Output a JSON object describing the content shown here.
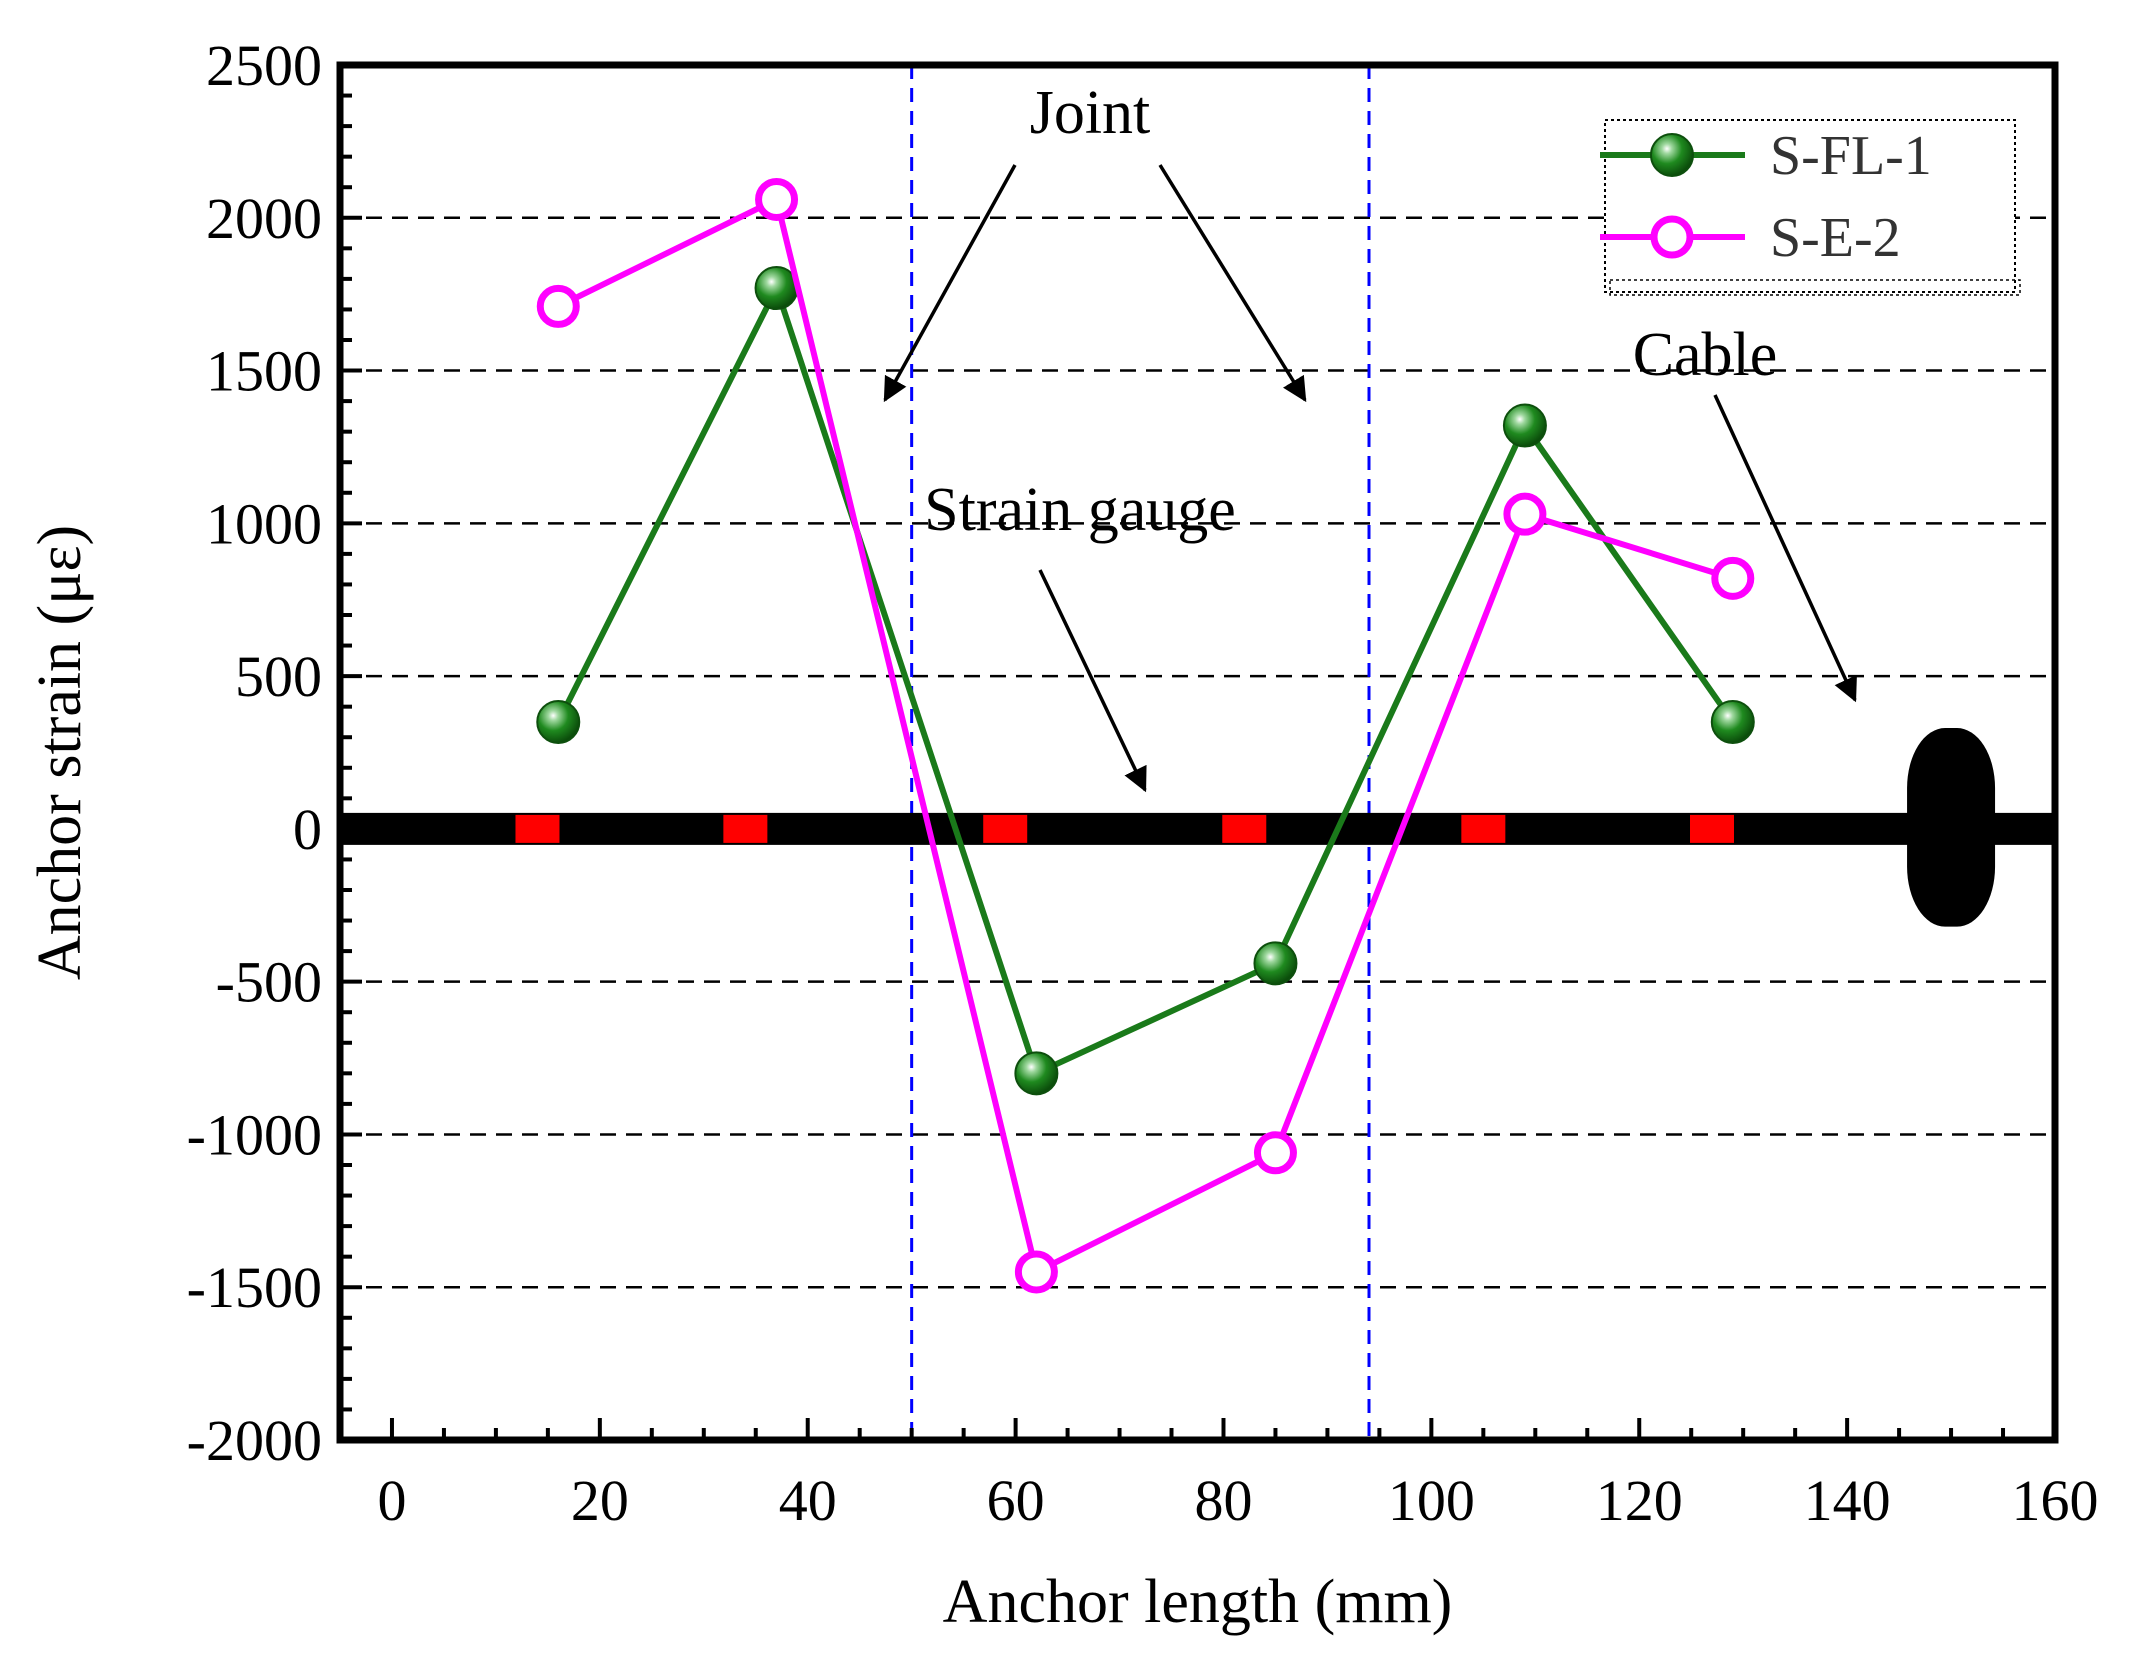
{
  "chart_data": {
    "type": "line",
    "title": "",
    "xlabel": "Anchor length (mm)",
    "ylabel": "Anchor strain (με)",
    "xlim": [
      -5,
      160
    ],
    "ylim": [
      -2000,
      2500
    ],
    "xticks": [
      0,
      20,
      40,
      60,
      80,
      100,
      120,
      140,
      160
    ],
    "yticks": [
      -2000,
      -1500,
      -1000,
      -500,
      0,
      500,
      1000,
      1500,
      2000,
      2500
    ],
    "xtick_labels": [
      "0",
      "20",
      "40",
      "60",
      "80",
      "100",
      "120",
      "140",
      "160"
    ],
    "ytick_labels": [
      "-2000",
      "-1500",
      "-1000",
      "-500",
      "0",
      "500",
      "1000",
      "1500",
      "2000",
      "2500"
    ],
    "grid": "horizontal dashed",
    "legend_position": "top-right",
    "series": [
      {
        "name": "S-FL-1",
        "color": "#1a7a1a",
        "marker": "filled-sphere",
        "x": [
          16,
          37,
          62,
          85,
          109,
          129
        ],
        "y": [
          350,
          1770,
          -800,
          -440,
          1320,
          350
        ]
      },
      {
        "name": "S-E-2",
        "color": "#ff00ff",
        "marker": "open-circle",
        "x": [
          16,
          37,
          62,
          85,
          109,
          129
        ],
        "y": [
          1710,
          2060,
          -1450,
          -1060,
          1030,
          820
        ]
      }
    ],
    "joint_lines_x": [
      50,
      94
    ],
    "joint_line_color": "#0000ff",
    "annotations": {
      "joint": "Joint",
      "strain_gauge": "Strain gauge",
      "cable": "Cable"
    },
    "cable": {
      "strain_level": 0,
      "x_start": -5,
      "x_end": 160,
      "gauge_x": [
        14,
        34,
        59,
        82,
        105,
        127
      ],
      "anchor_head_x": 150,
      "gauge_color": "#ff0000"
    }
  }
}
